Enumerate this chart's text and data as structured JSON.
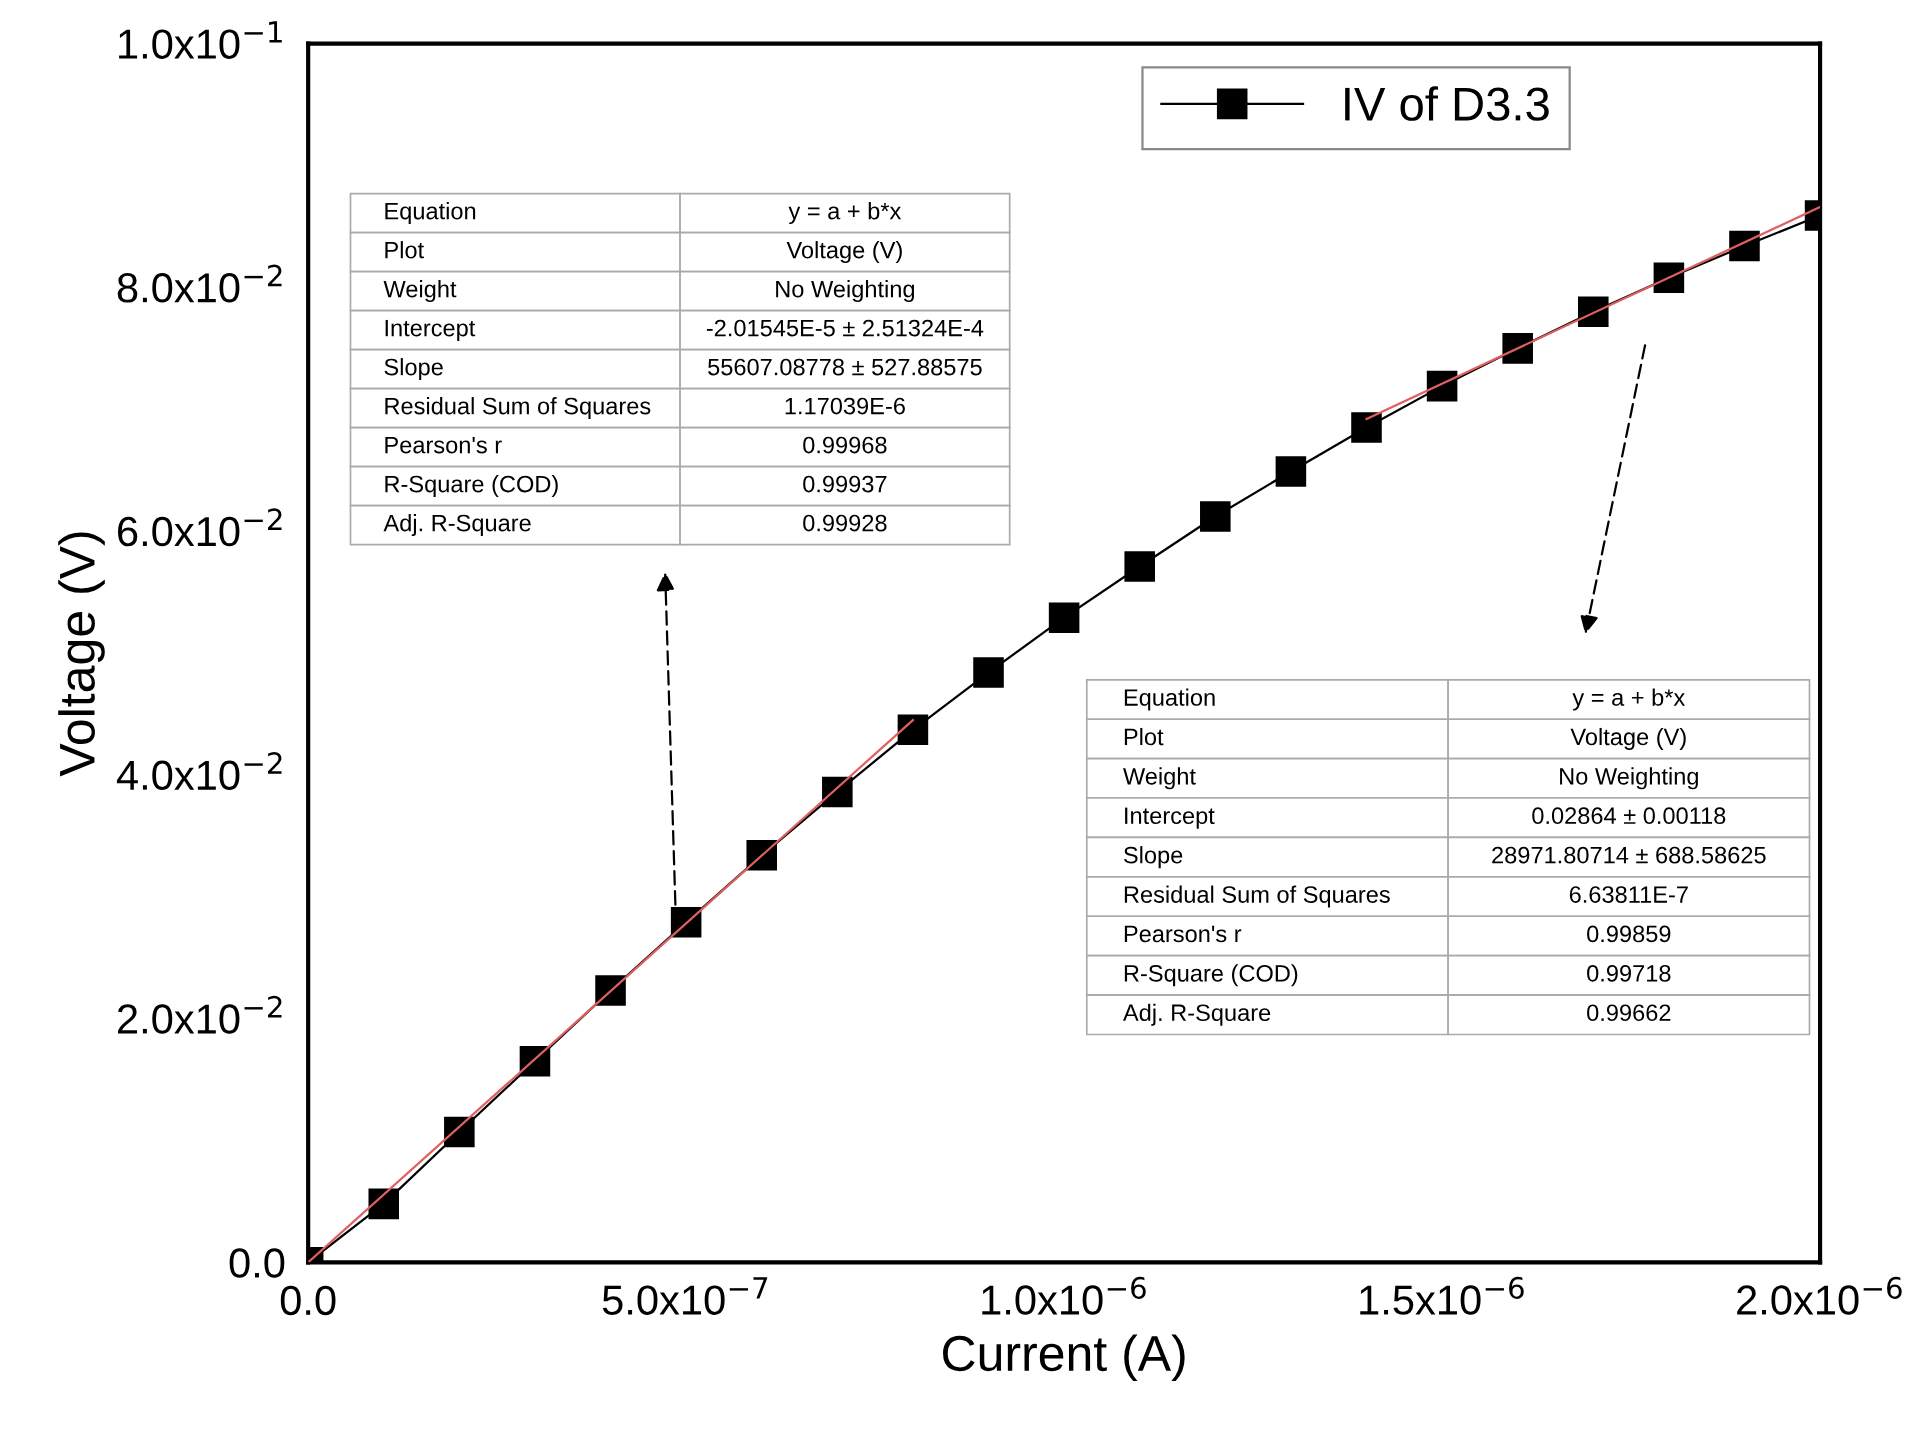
{
  "chart_data": {
    "type": "line",
    "xlabel": "Current (A)",
    "ylabel": "Voltage (V)",
    "x": [
      0,
      1e-07,
      2e-07,
      3e-07,
      4e-07,
      5e-07,
      6e-07,
      7e-07,
      8e-07,
      9e-07,
      1e-06,
      1.1e-06,
      1.2e-06,
      1.3e-06,
      1.4e-06,
      1.5e-06,
      1.6e-06,
      1.7e-06,
      1.8e-06,
      1.9e-06,
      2e-06
    ],
    "series": [
      {
        "name": "IV of D3.3",
        "color": "#000000",
        "marker": "square",
        "values": [
          0,
          0.0048,
          0.0107,
          0.0165,
          0.0223,
          0.0279,
          0.0334,
          0.0386,
          0.0437,
          0.0484,
          0.0529,
          0.0571,
          0.0612,
          0.0649,
          0.0685,
          0.0719,
          0.075,
          0.078,
          0.0808,
          0.0834,
          0.0859
        ]
      },
      {
        "color": "#e06060",
        "marker": "none",
        "x": [
          0,
          8e-07
        ],
        "values": [
          0,
          0.0445
        ]
      },
      {
        "color": "#e06060",
        "marker": "none",
        "x": [
          1.4e-06,
          2e-06
        ],
        "values": [
          0.0692,
          0.0866
        ]
      }
    ],
    "xlim": [
      0,
      2e-06
    ],
    "ylim": [
      0,
      0.1
    ],
    "xticks": [
      {
        "value": 0,
        "label": "0.0"
      },
      {
        "value": 5e-07,
        "label": "5.0x10$^{−7}$"
      },
      {
        "value": 1e-06,
        "label": "1.0x10$^{−6}$"
      },
      {
        "value": 1.5e-06,
        "label": "1.5x10$^{−6}$"
      },
      {
        "value": 2e-06,
        "label": "2.0x10$^{−6}$"
      }
    ],
    "yticks": [
      {
        "value": 0,
        "label": "0.0"
      },
      {
        "value": 0.02,
        "label": "2.0x10$^{−2}$"
      },
      {
        "value": 0.04,
        "label": "4.0x10$^{−2}$"
      },
      {
        "value": 0.06,
        "label": "6.0x10$^{−2}$"
      },
      {
        "value": 0.08,
        "label": "8.0x10$^{−2}$"
      },
      {
        "value": 0.1,
        "label": "1.0x10$^{−1}$"
      }
    ],
    "grid": false,
    "legend": "top right",
    "annotations": [
      "Equation",
      "y = a + b*x",
      "Plot",
      "Voltage (V)",
      "Weight",
      "No Weighting",
      "Intercept",
      "-2.01545E-5 ± 2.51324E-4",
      "Slope",
      "55607.08778 ± 527.88575",
      "Residual Sum of Squares",
      "1.17039E-6",
      "Pearson's r",
      "0.99968",
      "R-Square (COD)",
      "0.99937",
      "Adj. R-Square",
      "0.99928",
      "Equation",
      "y = a + b*x",
      "Plot",
      "Voltage (V)",
      "Weight",
      "No Weighting",
      "Intercept",
      "0.02864 ± 0.00118",
      "Slope",
      "28971.80714 ± 688.58625",
      "Residual Sum of Squares",
      "6.63811E-7",
      "Pearson's r",
      "0.99859",
      "R-Square (COD)",
      "0.99718",
      "Adj. R-Square",
      "0.99662"
    ]
  }
}
